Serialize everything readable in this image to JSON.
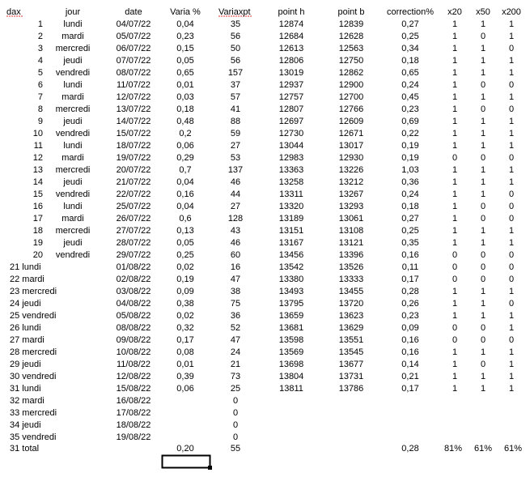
{
  "headers": {
    "dax": "dax",
    "jour": "jour",
    "date": "date",
    "varia": "Varia %",
    "variaxpt": "Variaxpt",
    "point_h": "point h",
    "point_b": "point b",
    "correction": "correction%",
    "x20": "x20",
    "x50": "x50",
    "x200": "x200"
  },
  "rows": [
    {
      "dax": "1",
      "jour": "lundi",
      "date": "04/07/22",
      "varia": "0,04",
      "variaxpt": "35",
      "point_h": "12874",
      "point_b": "12839",
      "correction": "0,27",
      "x20": "1",
      "x50": "1",
      "x200": "1"
    },
    {
      "dax": "2",
      "jour": "mardi",
      "date": "05/07/22",
      "varia": "0,23",
      "variaxpt": "56",
      "point_h": "12684",
      "point_b": "12628",
      "correction": "0,25",
      "x20": "1",
      "x50": "0",
      "x200": "1"
    },
    {
      "dax": "3",
      "jour": "mercredi",
      "date": "06/07/22",
      "varia": "0,15",
      "variaxpt": "50",
      "point_h": "12613",
      "point_b": "12563",
      "correction": "0,34",
      "x20": "1",
      "x50": "1",
      "x200": "0"
    },
    {
      "dax": "4",
      "jour": "jeudi",
      "date": "07/07/22",
      "varia": "0,05",
      "variaxpt": "56",
      "point_h": "12806",
      "point_b": "12750",
      "correction": "0,18",
      "x20": "1",
      "x50": "1",
      "x200": "1"
    },
    {
      "dax": "5",
      "jour": "vendredi",
      "date": "08/07/22",
      "varia": "0,65",
      "variaxpt": "157",
      "point_h": "13019",
      "point_b": "12862",
      "correction": "0,65",
      "x20": "1",
      "x50": "1",
      "x200": "1"
    },
    {
      "dax": "6",
      "jour": "lundi",
      "date": "11/07/22",
      "varia": "0,01",
      "variaxpt": "37",
      "point_h": "12937",
      "point_b": "12900",
      "correction": "0,24",
      "x20": "1",
      "x50": "0",
      "x200": "0"
    },
    {
      "dax": "7",
      "jour": "mardi",
      "date": "12/07/22",
      "varia": "0,03",
      "variaxpt": "57",
      "point_h": "12757",
      "point_b": "12700",
      "correction": "0,45",
      "x20": "1",
      "x50": "1",
      "x200": "1"
    },
    {
      "dax": "8",
      "jour": "mercredi",
      "date": "13/07/22",
      "varia": "0,18",
      "variaxpt": "41",
      "point_h": "12807",
      "point_b": "12766",
      "correction": "0,23",
      "x20": "1",
      "x50": "0",
      "x200": "0"
    },
    {
      "dax": "9",
      "jour": "jeudi",
      "date": "14/07/22",
      "varia": "0,48",
      "variaxpt": "88",
      "point_h": "12697",
      "point_b": "12609",
      "correction": "0,69",
      "x20": "1",
      "x50": "1",
      "x200": "1"
    },
    {
      "dax": "10",
      "jour": "vendredi",
      "date": "15/07/22",
      "varia": "0,2",
      "variaxpt": "59",
      "point_h": "12730",
      "point_b": "12671",
      "correction": "0,22",
      "x20": "1",
      "x50": "1",
      "x200": "1"
    },
    {
      "dax": "11",
      "jour": "lundi",
      "date": "18/07/22",
      "varia": "0,06",
      "variaxpt": "27",
      "point_h": "13044",
      "point_b": "13017",
      "correction": "0,19",
      "x20": "1",
      "x50": "1",
      "x200": "1"
    },
    {
      "dax": "12",
      "jour": "mardi",
      "date": "19/07/22",
      "varia": "0,29",
      "variaxpt": "53",
      "point_h": "12983",
      "point_b": "12930",
      "correction": "0,19",
      "x20": "0",
      "x50": "0",
      "x200": "0"
    },
    {
      "dax": "13",
      "jour": "mercredi",
      "date": "20/07/22",
      "varia": "0,7",
      "variaxpt": "137",
      "point_h": "13363",
      "point_b": "13226",
      "correction": "1,03",
      "x20": "1",
      "x50": "1",
      "x200": "1"
    },
    {
      "dax": "14",
      "jour": "jeudi",
      "date": "21/07/22",
      "varia": "0,04",
      "variaxpt": "46",
      "point_h": "13258",
      "point_b": "13212",
      "correction": "0,36",
      "x20": "1",
      "x50": "1",
      "x200": "1"
    },
    {
      "dax": "15",
      "jour": "vendredi",
      "date": "22/07/22",
      "varia": "0,16",
      "variaxpt": "44",
      "point_h": "13311",
      "point_b": "13267",
      "correction": "0,24",
      "x20": "1",
      "x50": "1",
      "x200": "0"
    },
    {
      "dax": "16",
      "jour": "lundi",
      "date": "25/07/22",
      "varia": "0,04",
      "variaxpt": "27",
      "point_h": "13320",
      "point_b": "13293",
      "correction": "0,18",
      "x20": "1",
      "x50": "0",
      "x200": "0"
    },
    {
      "dax": "17",
      "jour": "mardi",
      "date": "26/07/22",
      "varia": "0,6",
      "variaxpt": "128",
      "point_h": "13189",
      "point_b": "13061",
      "correction": "0,27",
      "x20": "1",
      "x50": "0",
      "x200": "0"
    },
    {
      "dax": "18",
      "jour": "mercredi",
      "date": "27/07/22",
      "varia": "0,13",
      "variaxpt": "43",
      "point_h": "13151",
      "point_b": "13108",
      "correction": "0,25",
      "x20": "1",
      "x50": "1",
      "x200": "1"
    },
    {
      "dax": "19",
      "jour": "jeudi",
      "date": "28/07/22",
      "varia": "0,05",
      "variaxpt": "46",
      "point_h": "13167",
      "point_b": "13121",
      "correction": "0,35",
      "x20": "1",
      "x50": "1",
      "x200": "1"
    },
    {
      "dax": "20",
      "jour": "vendredi",
      "date": "29/07/22",
      "varia": "0,25",
      "variaxpt": "60",
      "point_h": "13456",
      "point_b": "13396",
      "correction": "0,16",
      "x20": "0",
      "x50": "0",
      "x200": "0"
    },
    {
      "dax_jour": "21 lundi",
      "date": "01/08/22",
      "varia": "0,02",
      "variaxpt": "16",
      "point_h": "13542",
      "point_b": "13526",
      "correction": "0,11",
      "x20": "0",
      "x50": "0",
      "x200": "0"
    },
    {
      "dax_jour": "22 mardi",
      "date": "02/08/22",
      "varia": "0,19",
      "variaxpt": "47",
      "point_h": "13380",
      "point_b": "13333",
      "correction": "0,17",
      "x20": "0",
      "x50": "0",
      "x200": "0"
    },
    {
      "dax_jour": "23 mercredi",
      "date": "03/08/22",
      "varia": "0,09",
      "variaxpt": "38",
      "point_h": "13493",
      "point_b": "13455",
      "correction": "0,28",
      "x20": "1",
      "x50": "1",
      "x200": "1"
    },
    {
      "dax_jour": "24 jeudi",
      "date": "04/08/22",
      "varia": "0,38",
      "variaxpt": "75",
      "point_h": "13795",
      "point_b": "13720",
      "correction": "0,26",
      "x20": "1",
      "x50": "1",
      "x200": "0"
    },
    {
      "dax_jour": "25 vendredi",
      "date": "05/08/22",
      "varia": "0,02",
      "variaxpt": "36",
      "point_h": "13659",
      "point_b": "13623",
      "correction": "0,23",
      "x20": "1",
      "x50": "1",
      "x200": "1"
    },
    {
      "dax_jour": "26 lundi",
      "date": "08/08/22",
      "varia": "0,32",
      "variaxpt": "52",
      "point_h": "13681",
      "point_b": "13629",
      "correction": "0,09",
      "x20": "0",
      "x50": "0",
      "x200": "1"
    },
    {
      "dax_jour": "27 mardi",
      "date": "09/08/22",
      "varia": "0,17",
      "variaxpt": "47",
      "point_h": "13598",
      "point_b": "13551",
      "correction": "0,16",
      "x20": "0",
      "x50": "0",
      "x200": "0"
    },
    {
      "dax_jour": "28 mercredi",
      "date": "10/08/22",
      "varia": "0,08",
      "variaxpt": "24",
      "point_h": "13569",
      "point_b": "13545",
      "correction": "0,16",
      "x20": "1",
      "x50": "1",
      "x200": "1"
    },
    {
      "dax_jour": "29 jeudi",
      "date": "11/08/22",
      "varia": "0,01",
      "variaxpt": "21",
      "point_h": "13698",
      "point_b": "13677",
      "correction": "0,14",
      "x20": "1",
      "x50": "0",
      "x200": "1"
    },
    {
      "dax_jour": "30 vendredi",
      "date": "12/08/22",
      "varia": "0,39",
      "variaxpt": "73",
      "point_h": "13804",
      "point_b": "13731",
      "correction": "0,21",
      "x20": "1",
      "x50": "1",
      "x200": "1"
    },
    {
      "dax_jour": "31 lundi",
      "date": "15/08/22",
      "varia": "0,06",
      "variaxpt": "25",
      "point_h": "13811",
      "point_b": "13786",
      "correction": "0,17",
      "x20": "1",
      "x50": "1",
      "x200": "1"
    },
    {
      "dax_jour": "32 mardi",
      "date": "16/08/22",
      "variaxpt": "0"
    },
    {
      "dax_jour": "33 mercredi",
      "date": "17/08/22",
      "variaxpt": "0"
    },
    {
      "dax_jour": "34 jeudi",
      "date": "18/08/22",
      "variaxpt": "0"
    },
    {
      "dax_jour": "35 vendredi",
      "date": "19/08/22",
      "variaxpt": "0"
    }
  ],
  "total": {
    "dax_jour": "31 total",
    "varia": "0,20",
    "variaxpt": "55",
    "correction": "0,28",
    "x20": "81%",
    "x50": "61%",
    "x200": "61%"
  }
}
